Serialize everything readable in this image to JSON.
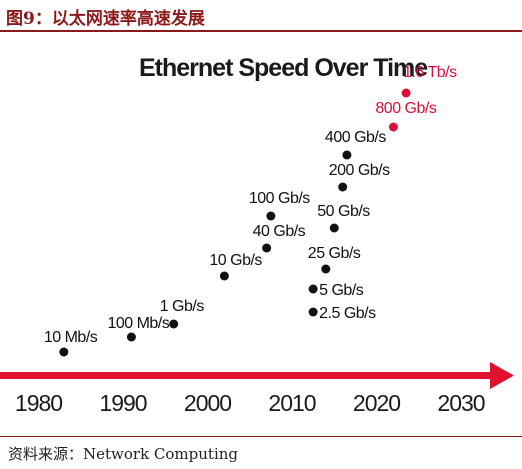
{
  "caption": "图9：以太网速率高速发展",
  "source": "资料来源：Network Computing",
  "colors": {
    "caption": "#8b1a1a",
    "point": "#111111",
    "highlight": "#d6123c",
    "axis": "#e0102f",
    "text": "#1a1a1a"
  },
  "chart_data": {
    "type": "scatter",
    "title": "Ethernet Speed Over Time",
    "xlabel": "",
    "ylabel": "",
    "xlim": [
      1978,
      2032
    ],
    "x_ticks": [
      "1980",
      "1990",
      "2000",
      "2010",
      "2020",
      "2030"
    ],
    "x_tick_values": [
      1980,
      1990,
      2000,
      2010,
      2020,
      2030
    ],
    "grid": false,
    "legend": "none",
    "points": [
      {
        "label": "10 Mb/s",
        "x": 1983,
        "highlight": false
      },
      {
        "label": "100 Mb/s",
        "x": 1991,
        "highlight": false
      },
      {
        "label": "1 Gb/s",
        "x": 1996,
        "highlight": false
      },
      {
        "label": "10 Gb/s",
        "x": 2002,
        "highlight": false
      },
      {
        "label": "40 Gb/s",
        "x": 2007,
        "highlight": false
      },
      {
        "label": "100 Gb/s",
        "x": 2007.5,
        "highlight": false
      },
      {
        "label": "2.5 Gb/s",
        "x": 2012.5,
        "highlight": false
      },
      {
        "label": "5 Gb/s",
        "x": 2012.5,
        "highlight": false
      },
      {
        "label": "25 Gb/s",
        "x": 2014,
        "highlight": false
      },
      {
        "label": "50 Gb/s",
        "x": 2015,
        "highlight": false
      },
      {
        "label": "200 Gb/s",
        "x": 2016,
        "highlight": false
      },
      {
        "label": "400 Gb/s",
        "x": 2016.5,
        "highlight": false
      },
      {
        "label": "800 Gb/s",
        "x": 2022,
        "highlight": true
      },
      {
        "label": "1.6 Tb/s",
        "x": 2023.5,
        "highlight": true
      }
    ]
  }
}
